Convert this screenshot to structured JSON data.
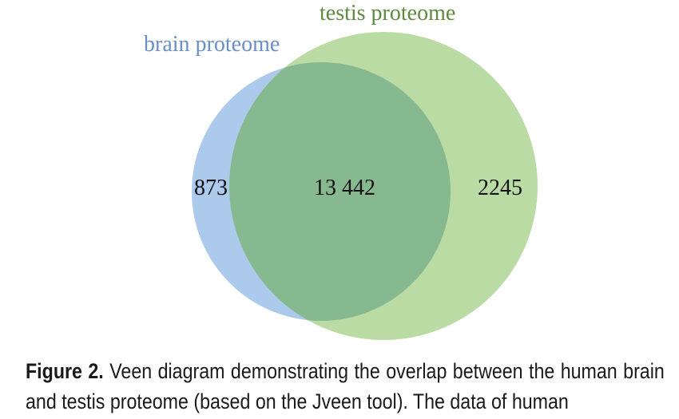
{
  "diagram": {
    "sets": [
      {
        "name": "brain proteome",
        "color": "#6a8fc6",
        "fill": "#8fb6e2"
      },
      {
        "name": "testis proteome",
        "color": "#5e8a3e",
        "fill": "#a5cf83"
      }
    ],
    "counts": {
      "brain_only": "873",
      "intersection": "13 442",
      "testis_only": "2245"
    },
    "intersection_color": "#7eb38a"
  },
  "caption": {
    "label": "Figure 2.",
    "text": "Veen diagram demonstrating the overlap between the human brain and testis proteome (based on the Jveen tool). The data of human"
  }
}
